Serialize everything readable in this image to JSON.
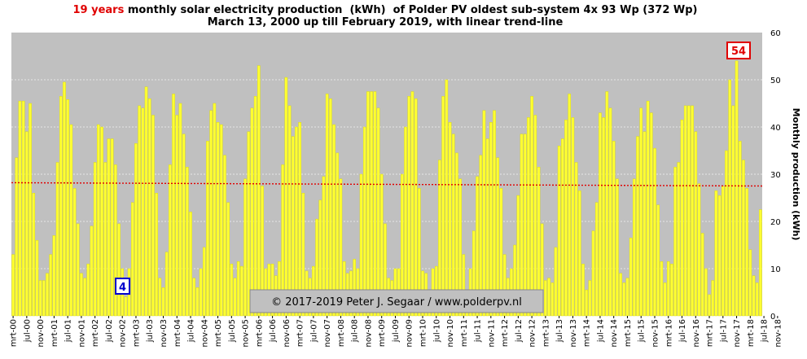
{
  "colors": {
    "plot_bg": "#c0c0c0",
    "bar": "#ffff33",
    "bar_stroke": "#d8d800",
    "trend": "#e00000",
    "min_box": "#0000cc",
    "max_box": "#e00000",
    "grid": "#e6e6e6",
    "title_accent": "#e00000"
  },
  "chart_data": {
    "type": "bar",
    "title_accent": "19 years",
    "title_rest": " monthly solar electricity production  (kWh)  of Polder PV oldest sub-system 4x 93 Wp (372 Wp)",
    "subtitle": "March 13, 2000 up till February 2019, with linear trend-line",
    "ylabel": "Monthly production (kWh)",
    "ylim": [
      0,
      60
    ],
    "yticks": [
      0,
      10,
      20,
      30,
      40,
      50,
      60
    ],
    "grid": true,
    "x_tick_labels": [
      "mrt-00",
      "jul-00",
      "nov-00",
      "mrt-01",
      "jul-01",
      "nov-01",
      "mrt-02",
      "jul-02",
      "nov-02",
      "mrt-03",
      "jul-03",
      "nov-03",
      "mrt-04",
      "jul-04",
      "nov-04",
      "mrt-05",
      "jul-05",
      "nov-05",
      "mrt-06",
      "jul-06",
      "nov-06",
      "mrt-07",
      "jul-07",
      "nov-07",
      "mrt-08",
      "jul-08",
      "nov-08",
      "mrt-09",
      "jul-09",
      "nov-09",
      "mrt-10",
      "jul-10",
      "nov-10",
      "mrt-11",
      "jul-11",
      "nov-11",
      "mrt-12",
      "jul-12",
      "nov-12",
      "mrt-13",
      "jul-13",
      "nov-13",
      "mrt-14",
      "jul-14",
      "nov-14",
      "mrt-15",
      "jul-15",
      "nov-15",
      "mrt-16",
      "jul-16",
      "nov-16",
      "mrt-17",
      "jul-17",
      "nov-17",
      "mrt-18",
      "jul-18",
      "nov-18"
    ],
    "values": [
      13,
      33.5,
      45.5,
      45.5,
      39,
      45,
      26,
      16,
      7.5,
      7.5,
      9,
      13,
      17,
      32.5,
      46.5,
      49.5,
      45.8,
      40.5,
      27,
      19.5,
      9,
      8,
      11,
      19,
      32.5,
      40.5,
      40,
      32.5,
      37.5,
      37.5,
      32,
      19.5,
      10,
      4,
      10,
      24,
      36.5,
      44.5,
      44,
      48.5,
      46,
      42.5,
      26,
      8,
      6,
      13.5,
      32,
      47,
      42.5,
      45,
      38.5,
      31.5,
      22,
      8,
      6,
      10,
      14.5,
      37,
      43.5,
      45,
      41,
      40.5,
      34,
      24,
      11,
      8,
      11.5,
      10.5,
      29,
      39,
      44,
      46.5,
      53,
      27.5,
      10,
      11,
      11,
      8.5,
      11.5,
      32,
      50.5,
      44.5,
      38,
      40,
      41,
      26,
      9.5,
      8,
      10.5,
      20.5,
      24.5,
      29.5,
      47,
      46,
      40.5,
      34.5,
      29,
      11.5,
      9,
      9.5,
      12,
      10,
      30,
      40,
      47.5,
      47.5,
      47.5,
      44,
      30,
      19.5,
      8,
      7.5,
      10,
      10,
      30,
      40,
      46.5,
      47.5,
      46,
      27,
      9.5,
      9,
      5,
      10,
      10.5,
      33,
      46.5,
      50,
      41,
      38.5,
      34.5,
      29,
      13,
      5,
      10,
      18,
      29.5,
      34,
      43.5,
      37.5,
      41,
      43.5,
      33.5,
      27,
      13,
      8,
      10,
      15,
      25.5,
      38.5,
      38.5,
      42,
      46.5,
      42.5,
      31.5,
      19.5,
      7.5,
      8,
      7,
      14.5,
      36,
      37.5,
      41.5,
      47,
      42,
      32.5,
      26.5,
      11,
      5.5,
      7.5,
      18,
      24,
      43,
      42,
      47.5,
      44,
      37,
      29,
      9,
      7,
      8,
      16.5,
      29,
      38,
      44,
      39,
      45.5,
      43,
      35.5,
      23.5,
      11.5,
      7,
      11.5,
      11,
      31.5,
      32.5,
      41.5,
      44.5,
      44.5,
      44.5,
      39,
      28,
      17.5,
      10,
      4.5,
      7.5,
      26.5,
      25.5,
      27.5,
      35,
      50,
      44.5,
      54,
      37,
      33,
      27,
      14,
      8.5,
      7,
      22.5
    ],
    "trend_start": 28.2,
    "trend_end": 27.5,
    "min_label": "4",
    "max_label": "54",
    "copyright": "© 2017-2019  Peter J. Segaar / www.polderpv.nl"
  }
}
